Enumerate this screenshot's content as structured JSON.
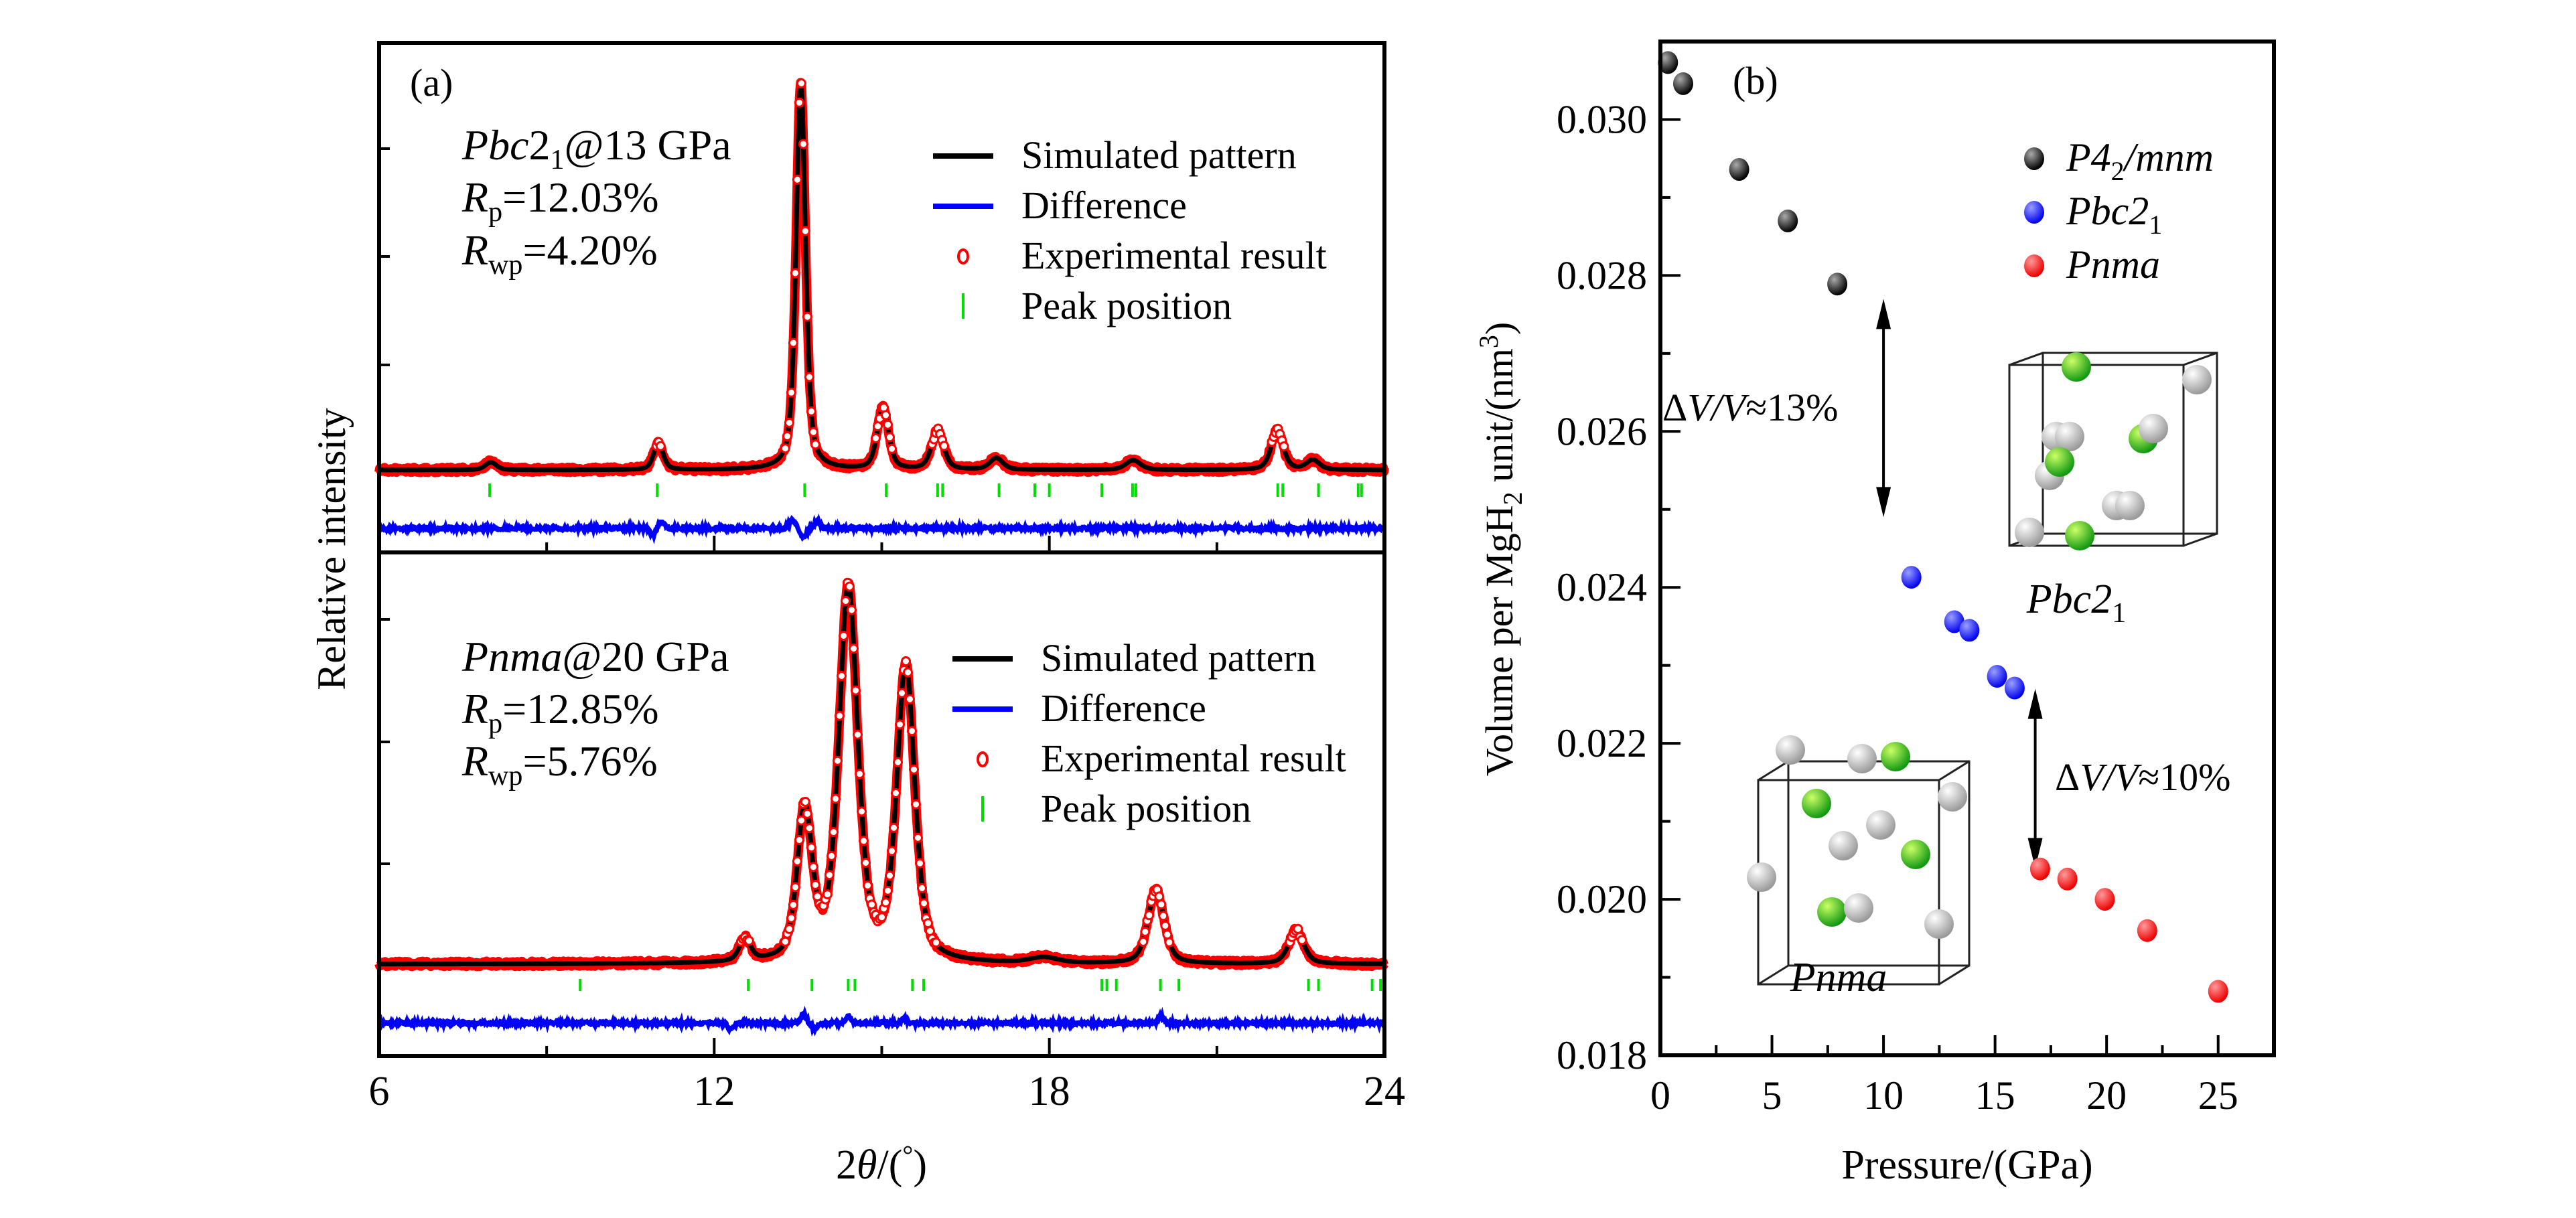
{
  "chart_data": [
    {
      "panel_label": "(a)",
      "type": "line",
      "title": "",
      "xlabel": "2θ/(°)",
      "xlabel_parts": {
        "num": "2",
        "sym": "θ",
        "rest": "/(",
        "deg": "°",
        "close": ")"
      },
      "ylabel": "Relative intensity",
      "xlim": [
        6,
        24
      ],
      "x_ticks": [
        6,
        12,
        18,
        24
      ],
      "x_minor_ticks": [
        9,
        15,
        21
      ],
      "y_ticks_shown_without_labels": true,
      "legend": {
        "placement": "top-right",
        "entries": [
          {
            "label": "Simulated pattern",
            "symbol": "line",
            "color": "#000000"
          },
          {
            "label": "Difference",
            "symbol": "line",
            "color": "#0000ff"
          },
          {
            "label": "Experimental result",
            "symbol": "open-circle",
            "color": "#ff0000"
          },
          {
            "label": "Peak position",
            "symbol": "vertical-bar",
            "color": "#00dd00"
          }
        ]
      },
      "subplots": [
        {
          "name": "Pbc21 @ 13 GPa",
          "annotation": {
            "phase_italic": "Pbc",
            "phase_num": "2",
            "phase_sub": "1",
            "condition": "@13 GPa",
            "rp_label": "R",
            "rp_sub": "p",
            "rp_value": "=12.03%",
            "rwp_label": "R",
            "rwp_sub": "wp",
            "rwp_value": "=4.20%"
          },
          "series": {
            "peaks_relative_intensity": [
              {
                "two_theta": 8.0,
                "intensity": 0.02,
                "width": 0.12
              },
              {
                "two_theta": 11.0,
                "intensity": 0.07,
                "width": 0.1
              },
              {
                "two_theta": 13.55,
                "intensity": 1.0,
                "width": 0.1
              },
              {
                "two_theta": 15.02,
                "intensity": 0.16,
                "width": 0.12
              },
              {
                "two_theta": 16.0,
                "intensity": 0.1,
                "width": 0.13
              },
              {
                "two_theta": 17.05,
                "intensity": 0.03,
                "width": 0.14
              },
              {
                "two_theta": 19.5,
                "intensity": 0.025,
                "width": 0.16
              },
              {
                "two_theta": 22.08,
                "intensity": 0.1,
                "width": 0.13
              },
              {
                "two_theta": 22.72,
                "intensity": 0.025,
                "width": 0.14
              }
            ],
            "peak_positions": [
              7.98,
              10.98,
              13.62,
              15.08,
              16.0,
              16.09,
              17.1,
              17.74,
              18.0,
              18.94,
              19.49,
              19.55,
              22.09,
              22.18,
              22.82,
              23.53,
              23.59
            ],
            "difference_features": [
              {
                "two_theta": 10.9,
                "amplitude": -0.03
              },
              {
                "two_theta": 11.05,
                "amplitude": 0.03
              },
              {
                "two_theta": 13.4,
                "amplitude": 0.04
              },
              {
                "two_theta": 13.6,
                "amplitude": -0.04
              },
              {
                "two_theta": 13.85,
                "amplitude": 0.03
              }
            ]
          }
        },
        {
          "name": "Pnma @ 20 GPa",
          "annotation": {
            "phase_italic": "Pnma",
            "condition": "@20 GPa",
            "rp_label": "R",
            "rp_sub": "p",
            "rp_value": "=12.85%",
            "rwp_label": "R",
            "rwp_sub": "wp",
            "rwp_value": "=5.76%"
          },
          "series": {
            "peaks_relative_intensity": [
              {
                "two_theta": 12.55,
                "intensity": 0.06,
                "width": 0.12
              },
              {
                "two_theta": 13.62,
                "intensity": 0.4,
                "width": 0.16
              },
              {
                "two_theta": 14.4,
                "intensity": 1.0,
                "width": 0.2
              },
              {
                "two_theta": 15.43,
                "intensity": 0.79,
                "width": 0.19
              },
              {
                "two_theta": 17.9,
                "intensity": 0.015,
                "width": 0.3
              },
              {
                "two_theta": 19.91,
                "intensity": 0.2,
                "width": 0.17
              },
              {
                "two_theta": 22.42,
                "intensity": 0.09,
                "width": 0.16
              }
            ],
            "peak_positions": [
              9.6,
              12.61,
              13.75,
              14.4,
              14.52,
              15.55,
              15.75,
              18.94,
              19.03,
              19.2,
              19.99,
              20.32,
              22.64,
              22.82,
              23.78,
              23.93
            ],
            "difference_features": [
              {
                "two_theta": 12.3,
                "amplitude": -0.03
              },
              {
                "two_theta": 13.6,
                "amplitude": 0.04
              },
              {
                "two_theta": 13.8,
                "amplitude": -0.03
              },
              {
                "two_theta": 14.4,
                "amplitude": 0.03
              },
              {
                "two_theta": 15.4,
                "amplitude": 0.02
              },
              {
                "two_theta": 20.0,
                "amplitude": 0.03
              }
            ]
          }
        }
      ]
    },
    {
      "panel_label": "(b)",
      "type": "scatter",
      "title": "",
      "xlabel": "Pressure/(GPa)",
      "ylabel": "Volume per MgH2 unit/(nm3)",
      "ylabel_parts": {
        "a": "Volume per MgH",
        "sub": "2",
        "b": " unit/(nm",
        "sup": "3",
        "c": ")"
      },
      "xlim": [
        0,
        27.5
      ],
      "ylim": [
        0.018,
        0.031
      ],
      "x_ticks": [
        0,
        5,
        10,
        15,
        20,
        25
      ],
      "x_tick_labels": [
        "0",
        "5",
        "10",
        "15",
        "20",
        "25"
      ],
      "x_minor_ticks": [
        2.5,
        7.5,
        12.5,
        17.5,
        22.5
      ],
      "y_ticks": [
        0.018,
        0.02,
        0.022,
        0.024,
        0.026,
        0.028,
        0.03
      ],
      "y_tick_labels": [
        "0.018",
        "0.020",
        "0.022",
        "0.024",
        "0.026",
        "0.028",
        "0.030"
      ],
      "y_minor_ticks": [
        0.019,
        0.021,
        0.023,
        0.025,
        0.027,
        0.029
      ],
      "legend": {
        "placement": "top-right",
        "entries": [
          {
            "label_main": "P4",
            "label_sub": "2",
            "label_rest": "/mnm",
            "color": "#000000"
          },
          {
            "label_main": "Pbc2",
            "label_sub": "1",
            "label_rest": "",
            "color": "#0000ff"
          },
          {
            "label_main": "Pnma",
            "label_sub": "",
            "label_rest": "",
            "color": "#ff0000"
          }
        ]
      },
      "series": [
        {
          "name": "P42/mnm",
          "color": "#000000",
          "x": [
            0.34,
            1.02,
            3.53,
            5.71,
            7.93
          ],
          "y": [
            0.03073,
            0.03046,
            0.02936,
            0.0287,
            0.02789
          ]
        },
        {
          "name": "Pbc21",
          "color": "#0000ff",
          "x": [
            11.25,
            13.17,
            13.85,
            15.09,
            15.88
          ],
          "y": [
            0.02413,
            0.02356,
            0.02345,
            0.02286,
            0.02271
          ]
        },
        {
          "name": "Pnma",
          "color": "#ff0000",
          "x": [
            17.02,
            18.24,
            19.92,
            21.82,
            25.0
          ],
          "y": [
            0.02039,
            0.02026,
            0.02,
            0.0196,
            0.01882
          ]
        }
      ],
      "annotations": [
        {
          "text_delta": "Δ",
          "text_v1": "V",
          "text_slash": "/",
          "text_v2": "V",
          "text_rest": "≈13%",
          "arrow_x": 10.0,
          "arrow_y_from": 0.0249,
          "arrow_y_to": 0.0277
        },
        {
          "text_delta": "Δ",
          "text_v1": "V",
          "text_slash": "/",
          "text_v2": "V",
          "text_rest": "≈10%",
          "arrow_x": 16.8,
          "arrow_y_from": 0.0204,
          "arrow_y_to": 0.0227
        }
      ],
      "insets": [
        {
          "label_main": "Pbc2",
          "label_sub": "1",
          "atoms_green": 4,
          "atoms_white": 8
        },
        {
          "label_main": "Pnma",
          "label_sub": "",
          "atoms_green": 4,
          "atoms_white": 8
        }
      ],
      "colors": {
        "mg_atom": "#22cc22",
        "h_atom": "#f2f2f2"
      }
    }
  ]
}
